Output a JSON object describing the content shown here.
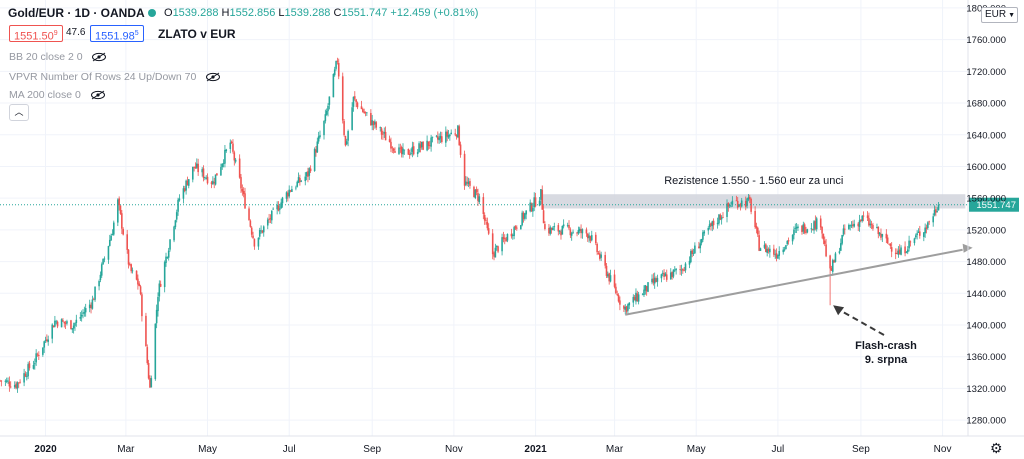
{
  "header": {
    "symbol": "Gold/EUR · 1D · OANDA",
    "ohlc": [
      {
        "k": "O",
        "v": "1539.288"
      },
      {
        "k": "H",
        "v": "1552.856"
      },
      {
        "k": "L",
        "v": "1539.288"
      },
      {
        "k": "C",
        "v": "1551.747"
      }
    ],
    "change": "+12.459 (+0.81%)",
    "bid": "1551.50",
    "bid_sup": "9",
    "spread": "47.6",
    "ask": "1551.98",
    "ask_sup": "5",
    "chart_title": "ZLATO v EUR",
    "currency": "EUR",
    "colors": {
      "up": "#26a69a",
      "down": "#ef5350"
    }
  },
  "indicators": [
    {
      "label": "BB 20 close 2 0",
      "icon": "eye-crossed-icon"
    },
    {
      "label": "VPVR Number Of Rows 24 Up/Down 70",
      "icon": "eye-crossed-icon"
    },
    {
      "label": "MA 200 close 0",
      "icon": "eye-crossed-icon"
    }
  ],
  "chart_data": {
    "type": "candlestick",
    "price_axis": {
      "ticks": [
        "1280.000",
        "1320.000",
        "1360.000",
        "1400.000",
        "1440.000",
        "1480.000",
        "1520.000",
        "1560.000",
        "1600.000",
        "1640.000",
        "1680.000",
        "1720.000",
        "1760.000",
        "1800.000"
      ],
      "ylim": [
        1260,
        1810
      ]
    },
    "time_axis": {
      "ticks": [
        {
          "label": "2020",
          "date": "2020-01-01",
          "bold": true
        },
        {
          "label": "Mar",
          "date": "2020-03-01"
        },
        {
          "label": "May",
          "date": "2020-05-01"
        },
        {
          "label": "Jul",
          "date": "2020-07-01"
        },
        {
          "label": "Sep",
          "date": "2020-09-01"
        },
        {
          "label": "Nov",
          "date": "2020-11-01"
        },
        {
          "label": "2021",
          "date": "2021-01-01",
          "bold": true
        },
        {
          "label": "Mar",
          "date": "2021-03-01"
        },
        {
          "label": "May",
          "date": "2021-05-01"
        },
        {
          "label": "Jul",
          "date": "2021-07-01"
        },
        {
          "label": "Sep",
          "date": "2021-09-01"
        },
        {
          "label": "Nov",
          "date": "2021-11-01"
        }
      ],
      "xlim": [
        "2019-11-28",
        "2021-11-20"
      ]
    },
    "anchors": [
      {
        "date": "2019-11-28",
        "close": 1330
      },
      {
        "date": "2019-12-10",
        "close": 1325
      },
      {
        "date": "2019-12-24",
        "close": 1355
      },
      {
        "date": "2020-01-08",
        "close": 1405
      },
      {
        "date": "2020-01-22",
        "close": 1400
      },
      {
        "date": "2020-02-05",
        "close": 1430
      },
      {
        "date": "2020-02-20",
        "close": 1520
      },
      {
        "date": "2020-02-24",
        "close": 1555
      },
      {
        "date": "2020-03-04",
        "close": 1470
      },
      {
        "date": "2020-03-11",
        "close": 1450
      },
      {
        "date": "2020-03-19",
        "close": 1320
      },
      {
        "date": "2020-03-25",
        "close": 1440
      },
      {
        "date": "2020-04-10",
        "close": 1560
      },
      {
        "date": "2020-04-21",
        "close": 1600
      },
      {
        "date": "2020-05-05",
        "close": 1580
      },
      {
        "date": "2020-05-18",
        "close": 1630
      },
      {
        "date": "2020-06-05",
        "close": 1505
      },
      {
        "date": "2020-06-15",
        "close": 1530
      },
      {
        "date": "2020-07-01",
        "close": 1570
      },
      {
        "date": "2020-07-15",
        "close": 1590
      },
      {
        "date": "2020-07-28",
        "close": 1660
      },
      {
        "date": "2020-08-06",
        "close": 1735
      },
      {
        "date": "2020-08-12",
        "close": 1625
      },
      {
        "date": "2020-08-18",
        "close": 1685
      },
      {
        "date": "2020-09-01",
        "close": 1655
      },
      {
        "date": "2020-09-23",
        "close": 1615
      },
      {
        "date": "2020-10-15",
        "close": 1630
      },
      {
        "date": "2020-11-04",
        "close": 1645
      },
      {
        "date": "2020-11-09",
        "close": 1580
      },
      {
        "date": "2020-11-20",
        "close": 1560
      },
      {
        "date": "2020-11-30",
        "close": 1490
      },
      {
        "date": "2020-12-15",
        "close": 1520
      },
      {
        "date": "2021-01-05",
        "close": 1565
      },
      {
        "date": "2021-01-08",
        "close": 1520
      },
      {
        "date": "2021-01-25",
        "close": 1520
      },
      {
        "date": "2021-02-10",
        "close": 1515
      },
      {
        "date": "2021-02-25",
        "close": 1460
      },
      {
        "date": "2021-03-08",
        "close": 1420
      },
      {
        "date": "2021-03-31",
        "close": 1455
      },
      {
        "date": "2021-04-20",
        "close": 1470
      },
      {
        "date": "2021-05-10",
        "close": 1520
      },
      {
        "date": "2021-05-28",
        "close": 1555
      },
      {
        "date": "2021-06-10",
        "close": 1555
      },
      {
        "date": "2021-06-17",
        "close": 1500
      },
      {
        "date": "2021-06-30",
        "close": 1490
      },
      {
        "date": "2021-07-15",
        "close": 1520
      },
      {
        "date": "2021-08-02",
        "close": 1530
      },
      {
        "date": "2021-08-06",
        "close": 1490
      },
      {
        "date": "2021-08-09",
        "close": 1465
      },
      {
        "date": "2021-08-20",
        "close": 1520
      },
      {
        "date": "2021-09-03",
        "close": 1535
      },
      {
        "date": "2021-09-20",
        "close": 1505
      },
      {
        "date": "2021-09-30",
        "close": 1490
      },
      {
        "date": "2021-10-20",
        "close": 1525
      },
      {
        "date": "2021-10-29",
        "close": 1552
      }
    ],
    "last_price": "1551.747",
    "resistance_zone": {
      "from": 1550,
      "to": 1560,
      "start": "2021-01-06",
      "end": "2021-11-18",
      "label": "Rezistence 1.550 - 1.560 eur za unci"
    },
    "support_line": {
      "start": {
        "date": "2021-03-09",
        "price": 1413
      },
      "end": {
        "date": "2021-11-16",
        "price": 1495
      }
    },
    "annotation": {
      "line1": "Flash-crash",
      "line2": "9. srpna",
      "date": "2021-08-09",
      "price": 1425
    }
  }
}
